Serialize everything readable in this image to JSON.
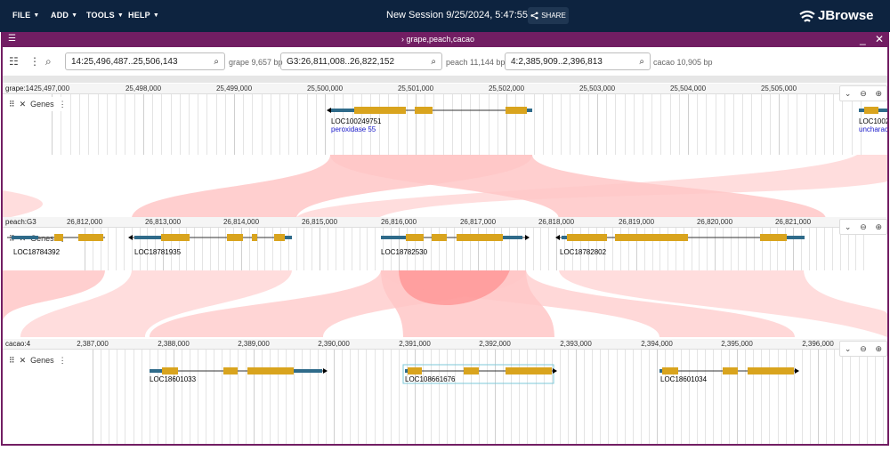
{
  "appbar": {
    "menus": [
      "FILE",
      "ADD",
      "TOOLS",
      "HELP"
    ],
    "session_title": "New Session 9/25/2024, 5:47:55 PM",
    "share_label": "SHARE",
    "logo_text": "JBrowse",
    "bg_color": "#0d233f"
  },
  "view": {
    "title": "grape,peach,cacao",
    "accent": "#721e63",
    "locations": [
      {
        "value": "14:25,496,487..25,506,143",
        "bp": "grape 9,657 bp"
      },
      {
        "value": "G3:26,811,008..26,822,152",
        "bp": "peach 11,144 bp"
      },
      {
        "value": "4:2,385,909..2,396,813",
        "bp": "cacao 10,905 bp"
      }
    ]
  },
  "rows": [
    {
      "asm": "grape:14",
      "ticks": [
        "25,497,000",
        "25,498,000",
        "25,499,000",
        "25,500,000",
        "25,501,000",
        "25,502,000",
        "25,503,000",
        "25,504,000",
        "25,505,000"
      ],
      "track": "Genes",
      "genes": [
        {
          "name": "LOC100249751",
          "desc": "peroxidase 55"
        },
        {
          "name": "LOC1002",
          "desc": "uncharac"
        }
      ]
    },
    {
      "asm": "peach:G3",
      "ticks": [
        "26,812,000",
        "26,813,000",
        "26,814,000",
        "26,815,000",
        "26,816,000",
        "26,817,000",
        "26,818,000",
        "26,819,000",
        "26,820,000",
        "26,821,000"
      ],
      "track": "Genes",
      "genes": [
        {
          "name": "LOC18784392"
        },
        {
          "name": "LOC18781935"
        },
        {
          "name": "LOC18782530"
        },
        {
          "name": "LOC18782802"
        }
      ]
    },
    {
      "asm": "cacao:4",
      "ticks": [
        "2,387,000",
        "2,388,000",
        "2,389,000",
        "2,390,000",
        "2,391,000",
        "2,392,000",
        "2,393,000",
        "2,394,000",
        "2,395,000",
        "2,396,000"
      ],
      "track": "Genes",
      "genes": [
        {
          "name": "LOC18601033"
        },
        {
          "name": "LOC108661676"
        },
        {
          "name": "LOC18601034"
        }
      ]
    }
  ],
  "colors": {
    "utr": "#2f6b8a",
    "cds": "#d9a41e",
    "synteny_light": "#ffc7c7",
    "synteny_dark": "#ff8d8d"
  }
}
